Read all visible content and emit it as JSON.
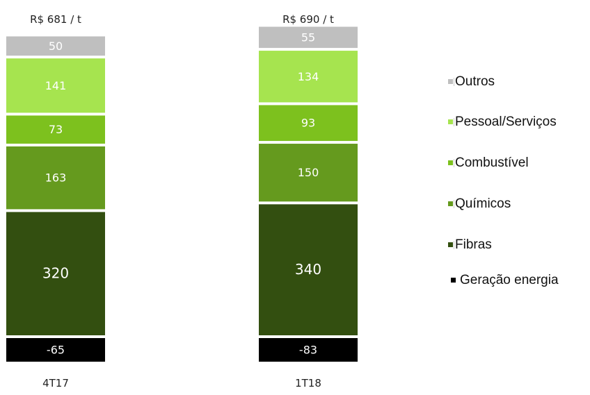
{
  "chart_data": {
    "type": "bar",
    "stacked": true,
    "categories": [
      "4T17",
      "1T18"
    ],
    "totals": [
      "R$ 681 / t",
      "R$ 690 / t"
    ],
    "series": [
      {
        "name": "Geração energia",
        "color": "#000000",
        "values": [
          -65,
          -83
        ]
      },
      {
        "name": "Fibras",
        "color": "#334F10",
        "values": [
          320,
          340
        ]
      },
      {
        "name": "Químicos",
        "color": "#659A1E",
        "values": [
          163,
          150
        ]
      },
      {
        "name": "Combustível",
        "color": "#7DC11E",
        "values": [
          73,
          93
        ]
      },
      {
        "name": "Pessoal/Serviços",
        "color": "#A6E44F",
        "values": [
          141,
          134
        ]
      },
      {
        "name": "Outros",
        "color": "#BFBFBF",
        "values": [
          50,
          55
        ]
      }
    ],
    "legend_order": [
      "Outros",
      "Pessoal/Serviços",
      "Combustível",
      "Químicos",
      "Fibras",
      "Geração energia"
    ],
    "legend_position": "right",
    "grid": false
  }
}
